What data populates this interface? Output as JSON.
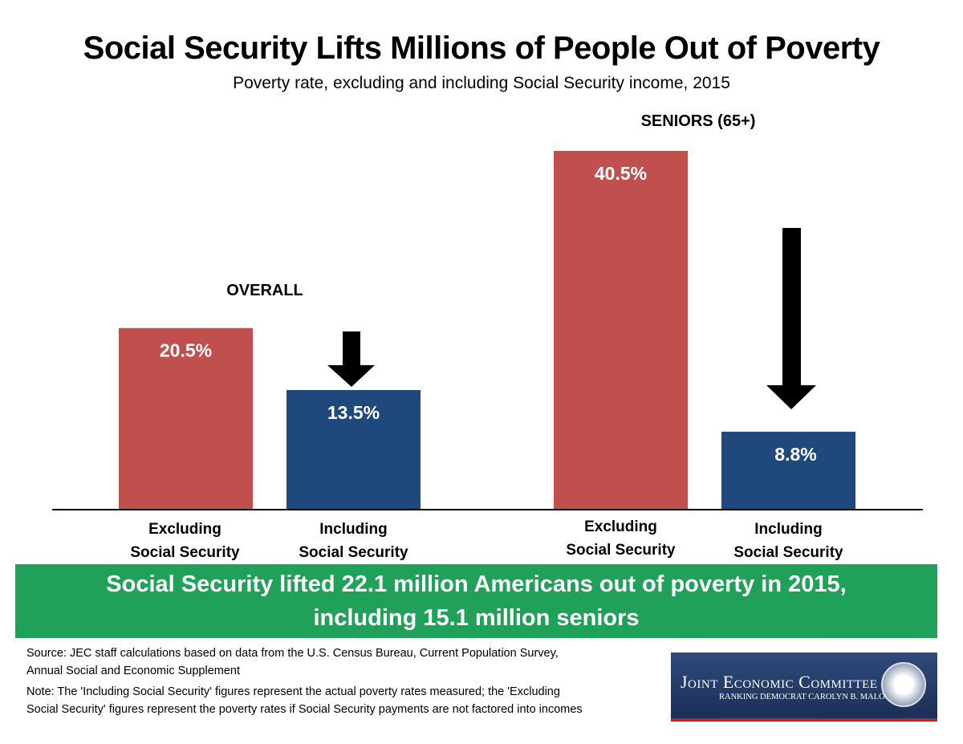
{
  "chart_data": {
    "type": "bar",
    "title": "Social Security Lifts Millions of People Out of Poverty",
    "subtitle": "Poverty rate, excluding and including Social Security income, 2015",
    "groups": [
      {
        "name": "OVERALL",
        "categories": [
          "Excluding Social Security",
          "Including Social Security"
        ],
        "values": [
          20.5,
          13.5
        ],
        "labels": [
          "20.5%",
          "13.5%"
        ]
      },
      {
        "name": "SENIORS (65+)",
        "categories": [
          "Excluding Social Security",
          "Including Social Security"
        ],
        "values": [
          40.5,
          8.8
        ],
        "labels": [
          "40.5%",
          "8.8%"
        ]
      }
    ],
    "category_lines": [
      [
        "Excluding",
        "Social Security"
      ],
      [
        "Including",
        "Social Security"
      ]
    ],
    "colors": {
      "excluding": "#c0504d",
      "including": "#1f497d",
      "banner": "#1fa15a"
    },
    "unit": "%",
    "ylim": [
      0,
      40.5
    ],
    "grid": false,
    "legend": "none"
  },
  "banner": {
    "line1": "Social Security lifted 22.1 million Americans out of poverty in 2015,",
    "line2": "including 15.1 million seniors"
  },
  "footer": {
    "source1": "Source: JEC staff calculations based on data from the U.S. Census Bureau, Current Population Survey,",
    "source2": "Annual Social and Economic Supplement",
    "note1": "Note: The 'Including Social Security' figures represent the actual poverty rates measured; the 'Excluding",
    "note2": "Social Security' figures represent the poverty rates if Social Security payments are not factored into incomes"
  },
  "logo": {
    "line1": "Joint Economic Committee",
    "line2": "RANKING DEMOCRAT CAROLYN B. MALONEY",
    "seal": "United States Congress"
  }
}
